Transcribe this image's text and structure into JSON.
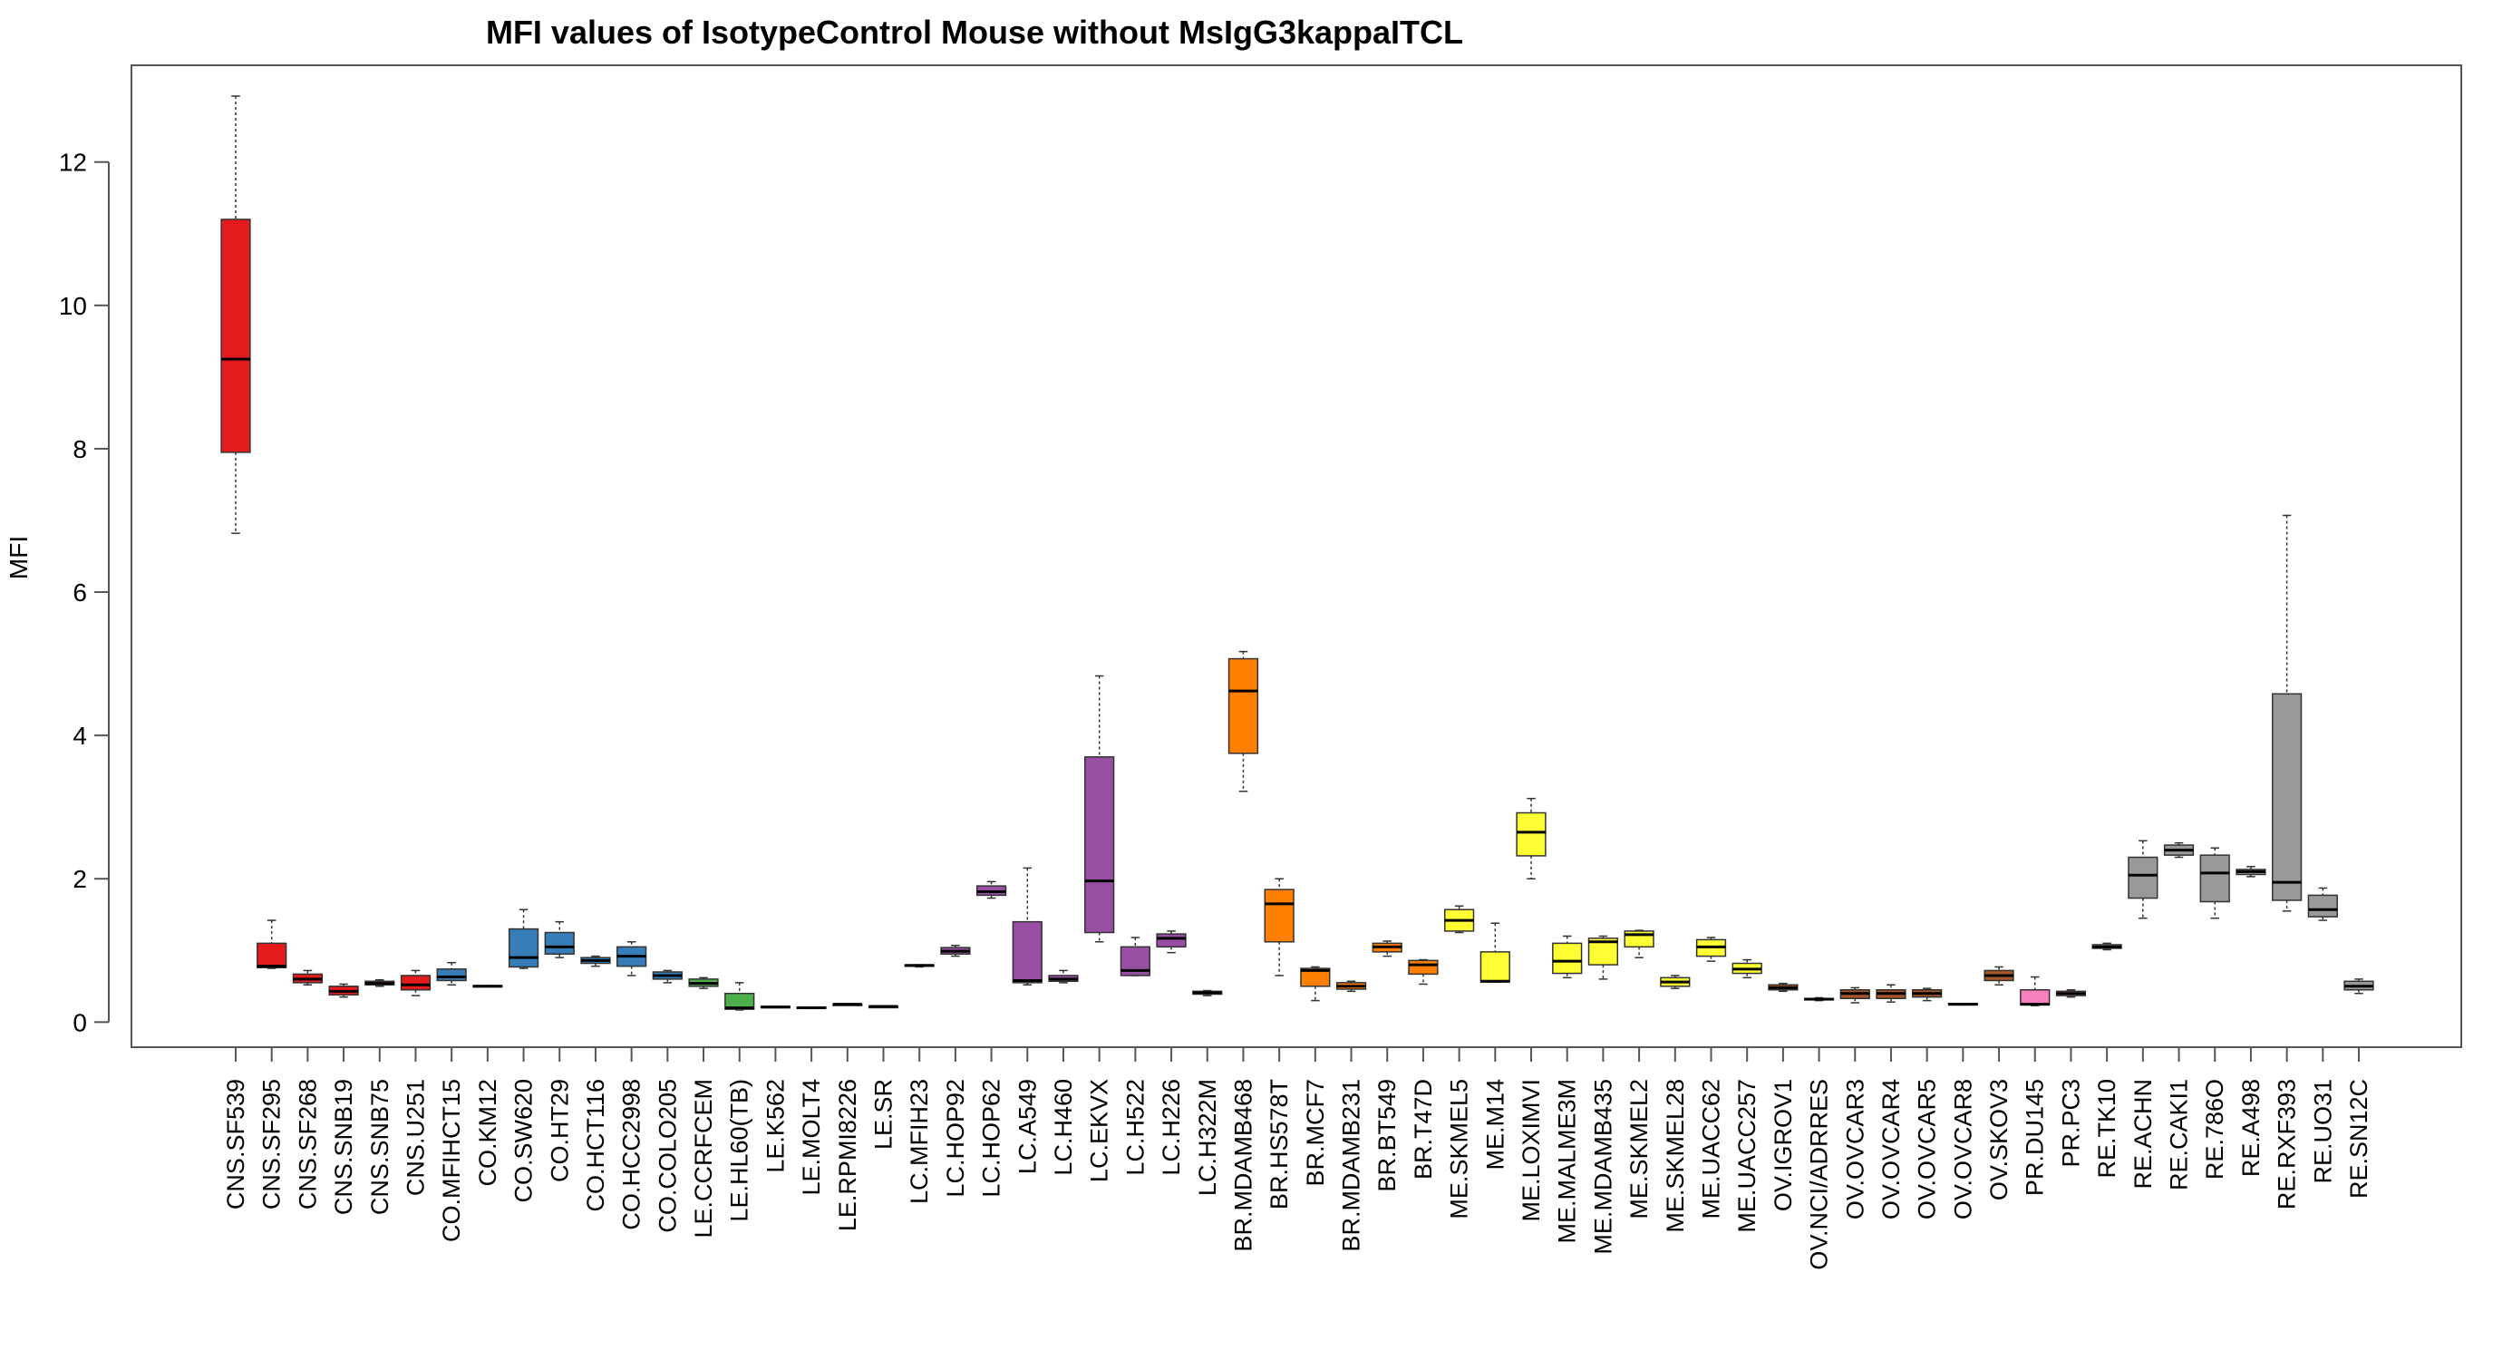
{
  "chart_data": {
    "type": "boxplot",
    "title": "MFI values of IsotypeControl Mouse without MsIgG3kappaITCL",
    "xlabel": "",
    "ylabel": "MFI",
    "ylim": [
      -0.35,
      13.35
    ],
    "yticks": [
      0,
      2,
      4,
      6,
      8,
      10,
      12
    ],
    "grid": false,
    "colors": {
      "CNS": "#E41A1C",
      "CO": "#377EB8",
      "LE": "#4DAF4A",
      "LC": "#984EA3",
      "BR": "#FF7F00",
      "ME": "#FFFF33",
      "OV": "#A65628",
      "PR": "#F781BF",
      "RE": "#999999"
    },
    "boxes": [
      {
        "label": "CNS.SF539",
        "group": "CNS",
        "min": 6.82,
        "q1": 7.95,
        "median": 9.25,
        "q3": 11.2,
        "max": 12.92
      },
      {
        "label": "CNS.SF295",
        "group": "CNS",
        "min": 0.75,
        "q1": 0.76,
        "median": 0.78,
        "q3": 1.1,
        "max": 1.42
      },
      {
        "label": "CNS.SF268",
        "group": "CNS",
        "min": 0.52,
        "q1": 0.55,
        "median": 0.6,
        "q3": 0.67,
        "max": 0.72
      },
      {
        "label": "CNS.SNB19",
        "group": "CNS",
        "min": 0.35,
        "q1": 0.38,
        "median": 0.43,
        "q3": 0.5,
        "max": 0.53
      },
      {
        "label": "CNS.SNB75",
        "group": "CNS",
        "min": 0.5,
        "q1": 0.52,
        "median": 0.54,
        "q3": 0.57,
        "max": 0.59
      },
      {
        "label": "CNS.U251",
        "group": "CNS",
        "min": 0.37,
        "q1": 0.45,
        "median": 0.52,
        "q3": 0.65,
        "max": 0.72
      },
      {
        "label": "CO.MFIHCT15",
        "group": "CO",
        "min": 0.52,
        "q1": 0.58,
        "median": 0.63,
        "q3": 0.74,
        "max": 0.83
      },
      {
        "label": "CO.KM12",
        "group": "CO",
        "min": 0.5,
        "q1": 0.5,
        "median": 0.5,
        "q3": 0.51,
        "max": 0.51
      },
      {
        "label": "CO.SW620",
        "group": "CO",
        "min": 0.75,
        "q1": 0.77,
        "median": 0.9,
        "q3": 1.3,
        "max": 1.57
      },
      {
        "label": "CO.HT29",
        "group": "CO",
        "min": 0.9,
        "q1": 0.95,
        "median": 1.05,
        "q3": 1.25,
        "max": 1.4
      },
      {
        "label": "CO.HCT116",
        "group": "CO",
        "min": 0.78,
        "q1": 0.82,
        "median": 0.86,
        "q3": 0.9,
        "max": 0.92
      },
      {
        "label": "CO.HCC2998",
        "group": "CO",
        "min": 0.65,
        "q1": 0.78,
        "median": 0.92,
        "q3": 1.05,
        "max": 1.12
      },
      {
        "label": "CO.COLO205",
        "group": "CO",
        "min": 0.55,
        "q1": 0.6,
        "median": 0.65,
        "q3": 0.7,
        "max": 0.72
      },
      {
        "label": "LE.CCRFCEM",
        "group": "LE",
        "min": 0.47,
        "q1": 0.5,
        "median": 0.54,
        "q3": 0.6,
        "max": 0.62
      },
      {
        "label": "LE.HL60(TB)",
        "group": "LE",
        "min": 0.17,
        "q1": 0.18,
        "median": 0.2,
        "q3": 0.4,
        "max": 0.55
      },
      {
        "label": "LE.K562",
        "group": "LE",
        "min": 0.21,
        "q1": 0.21,
        "median": 0.21,
        "q3": 0.22,
        "max": 0.22
      },
      {
        "label": "LE.MOLT4",
        "group": "LE",
        "min": 0.19,
        "q1": 0.19,
        "median": 0.2,
        "q3": 0.21,
        "max": 0.21
      },
      {
        "label": "LE.RPMI8226",
        "group": "LE",
        "min": 0.24,
        "q1": 0.24,
        "median": 0.25,
        "q3": 0.25,
        "max": 0.25
      },
      {
        "label": "LE.SR",
        "group": "LE",
        "min": 0.21,
        "q1": 0.21,
        "median": 0.22,
        "q3": 0.22,
        "max": 0.22
      },
      {
        "label": "LC.MFIH23",
        "group": "LC",
        "min": 0.77,
        "q1": 0.78,
        "median": 0.79,
        "q3": 0.8,
        "max": 0.8
      },
      {
        "label": "LC.HOP92",
        "group": "LC",
        "min": 0.92,
        "q1": 0.95,
        "median": 0.99,
        "q3": 1.04,
        "max": 1.07
      },
      {
        "label": "LC.HOP62",
        "group": "LC",
        "min": 1.73,
        "q1": 1.77,
        "median": 1.82,
        "q3": 1.9,
        "max": 1.96
      },
      {
        "label": "LC.A549",
        "group": "LC",
        "min": 0.52,
        "q1": 0.55,
        "median": 0.58,
        "q3": 1.4,
        "max": 2.15
      },
      {
        "label": "LC.H460",
        "group": "LC",
        "min": 0.55,
        "q1": 0.57,
        "median": 0.6,
        "q3": 0.65,
        "max": 0.72
      },
      {
        "label": "LC.EKVX",
        "group": "LC",
        "min": 1.12,
        "q1": 1.25,
        "median": 1.97,
        "q3": 3.7,
        "max": 4.83
      },
      {
        "label": "LC.H522",
        "group": "LC",
        "min": 0.65,
        "q1": 0.65,
        "median": 0.72,
        "q3": 1.05,
        "max": 1.18
      },
      {
        "label": "LC.H226",
        "group": "LC",
        "min": 0.97,
        "q1": 1.05,
        "median": 1.17,
        "q3": 1.23,
        "max": 1.27
      },
      {
        "label": "LC.H322M",
        "group": "LC",
        "min": 0.37,
        "q1": 0.39,
        "median": 0.41,
        "q3": 0.43,
        "max": 0.44
      },
      {
        "label": "BR.MDAMB468",
        "group": "BR",
        "min": 3.22,
        "q1": 3.75,
        "median": 4.62,
        "q3": 5.07,
        "max": 5.17
      },
      {
        "label": "BR.HS578T",
        "group": "BR",
        "min": 0.65,
        "q1": 1.12,
        "median": 1.65,
        "q3": 1.85,
        "max": 2.0
      },
      {
        "label": "BR.MCF7",
        "group": "BR",
        "min": 0.3,
        "q1": 0.5,
        "median": 0.72,
        "q3": 0.75,
        "max": 0.77
      },
      {
        "label": "BR.MDAMB231",
        "group": "BR",
        "min": 0.43,
        "q1": 0.46,
        "median": 0.5,
        "q3": 0.55,
        "max": 0.57
      },
      {
        "label": "BR.BT549",
        "group": "BR",
        "min": 0.92,
        "q1": 0.98,
        "median": 1.05,
        "q3": 1.1,
        "max": 1.13
      },
      {
        "label": "BR.T47D",
        "group": "BR",
        "min": 0.53,
        "q1": 0.67,
        "median": 0.8,
        "q3": 0.86,
        "max": 0.87
      },
      {
        "label": "ME.SKMEL5",
        "group": "ME",
        "min": 1.25,
        "q1": 1.27,
        "median": 1.42,
        "q3": 1.57,
        "max": 1.62
      },
      {
        "label": "ME.M14",
        "group": "ME",
        "min": 0.56,
        "q1": 0.56,
        "median": 0.57,
        "q3": 0.98,
        "max": 1.38
      },
      {
        "label": "ME.LOXIMVI",
        "group": "ME",
        "min": 2.0,
        "q1": 2.32,
        "median": 2.65,
        "q3": 2.92,
        "max": 3.12
      },
      {
        "label": "ME.MALME3M",
        "group": "ME",
        "min": 0.62,
        "q1": 0.68,
        "median": 0.85,
        "q3": 1.1,
        "max": 1.2
      },
      {
        "label": "ME.MDAMB435",
        "group": "ME",
        "min": 0.6,
        "q1": 0.8,
        "median": 1.12,
        "q3": 1.17,
        "max": 1.2
      },
      {
        "label": "ME.SKMEL2",
        "group": "ME",
        "min": 0.9,
        "q1": 1.05,
        "median": 1.22,
        "q3": 1.27,
        "max": 1.28
      },
      {
        "label": "ME.SKMEL28",
        "group": "ME",
        "min": 0.47,
        "q1": 0.5,
        "median": 0.56,
        "q3": 0.62,
        "max": 0.65
      },
      {
        "label": "ME.UACC62",
        "group": "ME",
        "min": 0.85,
        "q1": 0.92,
        "median": 1.05,
        "q3": 1.15,
        "max": 1.18
      },
      {
        "label": "ME.UACC257",
        "group": "ME",
        "min": 0.62,
        "q1": 0.68,
        "median": 0.74,
        "q3": 0.82,
        "max": 0.87
      },
      {
        "label": "OV.IGROV1",
        "group": "OV",
        "min": 0.43,
        "q1": 0.45,
        "median": 0.48,
        "q3": 0.52,
        "max": 0.54
      },
      {
        "label": "OV.NCI/ADRRES",
        "group": "OV",
        "min": 0.3,
        "q1": 0.31,
        "median": 0.32,
        "q3": 0.33,
        "max": 0.34
      },
      {
        "label": "OV.OVCAR3",
        "group": "OV",
        "min": 0.27,
        "q1": 0.33,
        "median": 0.4,
        "q3": 0.45,
        "max": 0.48
      },
      {
        "label": "OV.OVCAR4",
        "group": "OV",
        "min": 0.28,
        "q1": 0.33,
        "median": 0.4,
        "q3": 0.45,
        "max": 0.52
      },
      {
        "label": "OV.OVCAR5",
        "group": "OV",
        "min": 0.3,
        "q1": 0.35,
        "median": 0.4,
        "q3": 0.45,
        "max": 0.47
      },
      {
        "label": "OV.OVCAR8",
        "group": "OV",
        "min": 0.24,
        "q1": 0.24,
        "median": 0.25,
        "q3": 0.26,
        "max": 0.26
      },
      {
        "label": "OV.SKOV3",
        "group": "OV",
        "min": 0.52,
        "q1": 0.58,
        "median": 0.65,
        "q3": 0.72,
        "max": 0.77
      },
      {
        "label": "PR.DU145",
        "group": "PR",
        "min": 0.23,
        "q1": 0.24,
        "median": 0.25,
        "q3": 0.45,
        "max": 0.63
      },
      {
        "label": "PR.PC3",
        "group": "PR",
        "min": 0.35,
        "q1": 0.37,
        "median": 0.4,
        "q3": 0.43,
        "max": 0.45
      },
      {
        "label": "RE.TK10",
        "group": "RE",
        "min": 1.01,
        "q1": 1.03,
        "median": 1.05,
        "q3": 1.08,
        "max": 1.1
      },
      {
        "label": "RE.ACHN",
        "group": "RE",
        "min": 1.45,
        "q1": 1.73,
        "median": 2.05,
        "q3": 2.3,
        "max": 2.53
      },
      {
        "label": "RE.CAKI1",
        "group": "RE",
        "min": 2.3,
        "q1": 2.33,
        "median": 2.4,
        "q3": 2.47,
        "max": 2.5
      },
      {
        "label": "RE.786O",
        "group": "RE",
        "min": 1.45,
        "q1": 1.68,
        "median": 2.08,
        "q3": 2.33,
        "max": 2.43
      },
      {
        "label": "RE.A498",
        "group": "RE",
        "min": 2.03,
        "q1": 2.06,
        "median": 2.1,
        "q3": 2.13,
        "max": 2.17
      },
      {
        "label": "RE.RXF393",
        "group": "RE",
        "min": 1.55,
        "q1": 1.7,
        "median": 1.95,
        "q3": 4.58,
        "max": 7.07
      },
      {
        "label": "RE.UO31",
        "group": "RE",
        "min": 1.42,
        "q1": 1.47,
        "median": 1.57,
        "q3": 1.77,
        "max": 1.87
      },
      {
        "label": "RE.SN12C",
        "group": "RE",
        "min": 0.4,
        "q1": 0.45,
        "median": 0.5,
        "q3": 0.57,
        "max": 0.6
      }
    ]
  }
}
